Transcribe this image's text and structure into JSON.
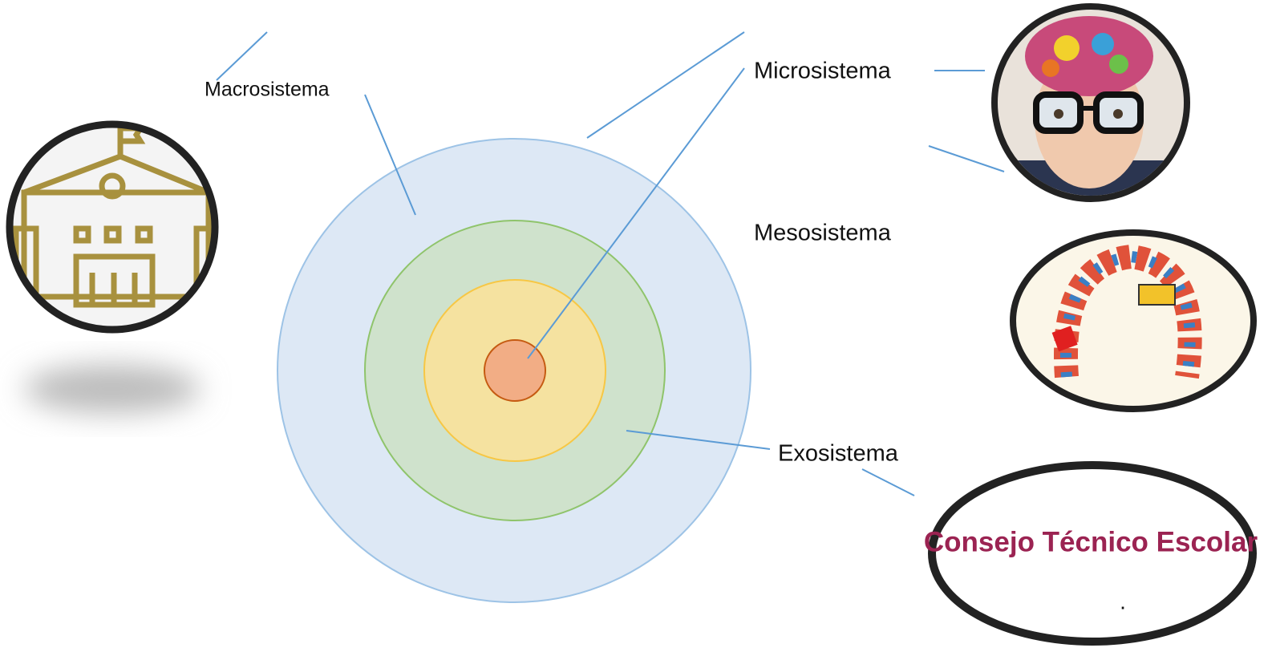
{
  "labels": [
    "Macrosistema",
    "Microsistema",
    "Mesosistema",
    "Exosistema"
  ],
  "image_text": "Consejo Técnico Escolar",
  "image_caption": "."
}
